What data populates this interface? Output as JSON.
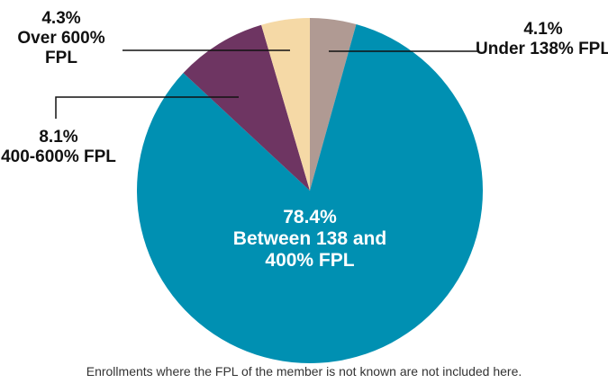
{
  "chart_data": {
    "type": "pie",
    "categories": [
      "Under 138% FPL",
      "Between 138 and 400% FPL",
      "400-600% FPL",
      "Over 600% FPL"
    ],
    "values": [
      4.1,
      78.4,
      8.1,
      4.3
    ],
    "value_labels": [
      "4.1%",
      "78.4%",
      "8.1%",
      "4.3%"
    ],
    "colors": [
      "#b09a93",
      "#0090b2",
      "#6e3562",
      "#f5d9a6"
    ],
    "note": "Enrollments where the FPL of the member is not known are not included here."
  }
}
